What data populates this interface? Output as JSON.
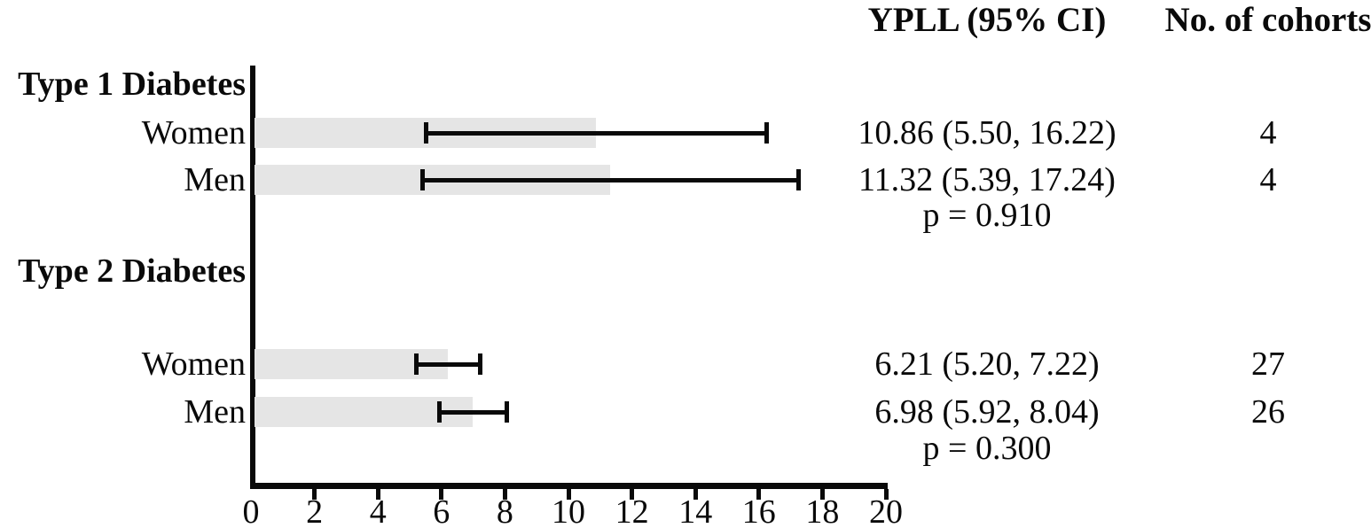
{
  "headers": {
    "ypll": "YPLL (95% CI)",
    "cohorts": "No. of cohorts"
  },
  "chart_data": {
    "type": "bar",
    "orientation": "horizontal",
    "title": "",
    "xlabel": "",
    "ylabel": "",
    "x_axis": {
      "min": 0,
      "max": 20,
      "tick_step": 2,
      "ticks": [
        0,
        2,
        4,
        6,
        8,
        10,
        12,
        14,
        16,
        18,
        20
      ]
    },
    "grid": false,
    "legend": false,
    "bar_color": "#e5e5e5",
    "line_color": "#0a0a0a",
    "sections": [
      {
        "label": "Type 1 Diabetes",
        "p_value": "p = 0.910",
        "rows": [
          {
            "label": "Women",
            "mean": 10.86,
            "ci_low": 5.5,
            "ci_high": 16.22,
            "ypll_text": "10.86 (5.50, 16.22)",
            "cohorts": "4"
          },
          {
            "label": "Men",
            "mean": 11.32,
            "ci_low": 5.39,
            "ci_high": 17.24,
            "ypll_text": "11.32 (5.39, 17.24)",
            "cohorts": "4"
          }
        ]
      },
      {
        "label": "Type 2 Diabetes",
        "p_value": "p = 0.300",
        "rows": [
          {
            "label": "Women",
            "mean": 6.21,
            "ci_low": 5.2,
            "ci_high": 7.22,
            "ypll_text": "6.21 (5.20, 7.22)",
            "cohorts": "27"
          },
          {
            "label": "Men",
            "mean": 6.98,
            "ci_low": 5.92,
            "ci_high": 8.04,
            "ypll_text": "6.98 (5.92, 8.04)",
            "cohorts": "26"
          }
        ]
      }
    ]
  }
}
